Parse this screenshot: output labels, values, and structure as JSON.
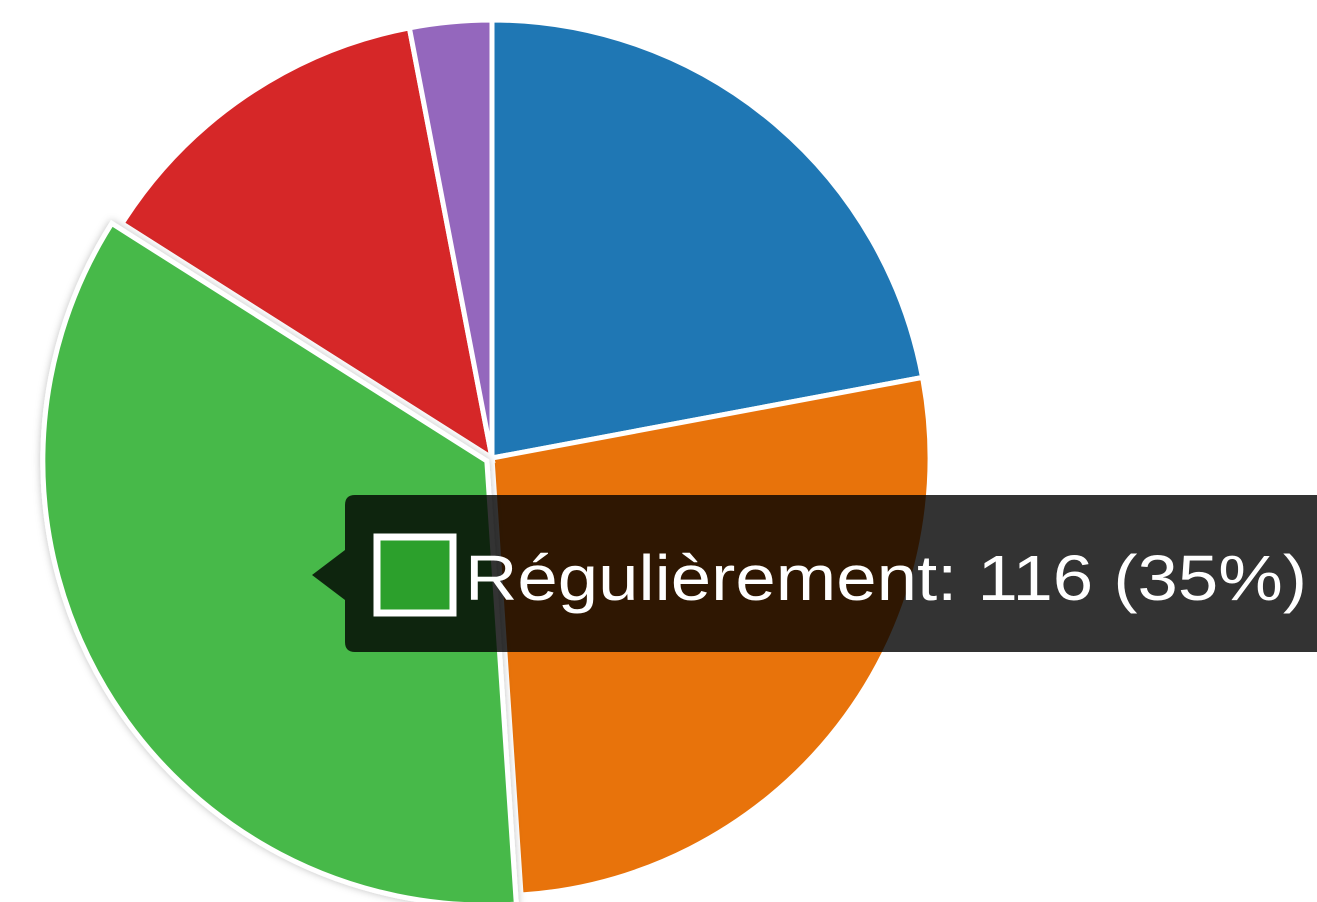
{
  "chart_data": {
    "type": "pie",
    "categories": [
      null,
      null,
      null,
      null,
      null
    ],
    "values": [
      73,
      89,
      116,
      43,
      10
    ],
    "colors": [
      "#1f77b4",
      "#e8730b",
      "#47b94a",
      "#d62728",
      "#9467bd"
    ],
    "highlight": 2,
    "tooltip": {
      "text": "Régulièrement: 116 (35%)",
      "swatch_color": "#2ca02c"
    }
  }
}
